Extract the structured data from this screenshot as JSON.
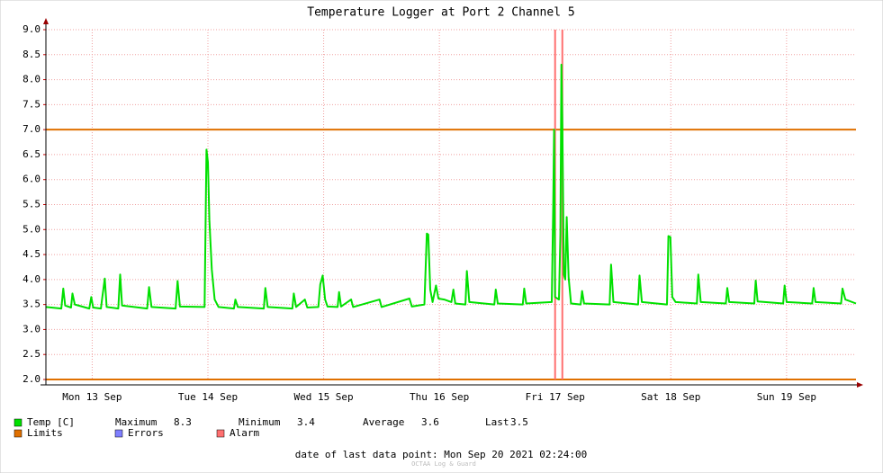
{
  "chart_data": {
    "type": "line",
    "title": "Temperature Logger at Port 2 Channel 5",
    "xlim": [
      2.4,
      170.4
    ],
    "xticks": [
      {
        "value": 12,
        "label": "Mon 13 Sep"
      },
      {
        "value": 36,
        "label": "Tue 14 Sep"
      },
      {
        "value": 60,
        "label": "Wed 15 Sep"
      },
      {
        "value": 84,
        "label": "Thu 16 Sep"
      },
      {
        "value": 108,
        "label": "Fri 17 Sep"
      },
      {
        "value": 132,
        "label": "Sat 18 Sep"
      },
      {
        "value": 156,
        "label": "Sun 19 Sep"
      }
    ],
    "ylim": [
      2,
      9
    ],
    "yticks": [
      {
        "value": 2,
        "label": "2.0"
      },
      2.5,
      {
        "value": 3,
        "label": "3.0"
      },
      3.5,
      {
        "value": 4,
        "label": "4.0"
      },
      4.5,
      {
        "value": 5,
        "label": "5.0"
      },
      5.5,
      {
        "value": 6,
        "label": "6.0"
      },
      6.5,
      {
        "value": 7,
        "label": "7.0"
      },
      7.5,
      {
        "value": 8,
        "label": "8.0"
      },
      8.5,
      {
        "value": 9,
        "label": "9.0"
      }
    ],
    "grid": true,
    "x": [
      2.4,
      5.6,
      6.0,
      6.4,
      7.6,
      7.9,
      8.4,
      11.4,
      11.8,
      12.2,
      13.8,
      14.1,
      14.6,
      15.0,
      17.4,
      17.8,
      18.2,
      23.4,
      23.8,
      24.3,
      29.3,
      29.7,
      30.2,
      35.3,
      35.7,
      36.0,
      36.3,
      36.8,
      37.4,
      38.2,
      41.4,
      41.7,
      42.2,
      47.6,
      47.9,
      48.4,
      53.5,
      53.8,
      54.3,
      56.1,
      56.6,
      58.9,
      59.3,
      59.8,
      60.3,
      60.8,
      62.9,
      63.2,
      63.6,
      65.7,
      66.1,
      71.6,
      72.0,
      77.8,
      78.3,
      80.9,
      81.4,
      81.7,
      82.1,
      82.6,
      83.3,
      83.8,
      85.0,
      86.5,
      86.9,
      87.3,
      89.4,
      89.7,
      90.2,
      95.4,
      95.7,
      96.1,
      101.3,
      101.6,
      102.0,
      107.3,
      107.6,
      107.8,
      108.0,
      108.8,
      109.1,
      109.3,
      109.5,
      109.8,
      110.1,
      110.4,
      110.8,
      111.3,
      113.3,
      113.6,
      114.0,
      119.3,
      119.6,
      120.1,
      125.2,
      125.5,
      126.0,
      131.2,
      131.5,
      131.9,
      132.3,
      133.0,
      137.4,
      137.7,
      138.2,
      143.4,
      143.7,
      144.1,
      149.3,
      149.6,
      150.0,
      155.3,
      155.6,
      156.0,
      161.3,
      161.6,
      162.0,
      167.3,
      167.6,
      168.2,
      170.4
    ],
    "series": [
      {
        "name": "Temp [C]",
        "color": "#00e000",
        "values": [
          3.45,
          3.42,
          3.82,
          3.48,
          3.44,
          3.72,
          3.5,
          3.42,
          3.65,
          3.44,
          3.42,
          3.65,
          4.02,
          3.45,
          3.42,
          4.1,
          3.48,
          3.42,
          3.85,
          3.45,
          3.42,
          3.97,
          3.46,
          3.45,
          6.6,
          6.35,
          5.2,
          4.2,
          3.6,
          3.45,
          3.42,
          3.6,
          3.45,
          3.42,
          3.83,
          3.45,
          3.42,
          3.72,
          3.45,
          3.6,
          3.44,
          3.45,
          3.9,
          4.08,
          3.6,
          3.46,
          3.45,
          3.75,
          3.46,
          3.6,
          3.45,
          3.6,
          3.45,
          3.62,
          3.46,
          3.5,
          4.92,
          4.9,
          3.8,
          3.55,
          3.88,
          3.62,
          3.6,
          3.55,
          3.8,
          3.52,
          3.5,
          4.17,
          3.55,
          3.5,
          3.8,
          3.52,
          3.5,
          3.82,
          3.52,
          3.55,
          5.45,
          7.0,
          3.65,
          3.6,
          4.9,
          8.3,
          7.1,
          4.1,
          4.0,
          5.25,
          4.05,
          3.52,
          3.5,
          3.77,
          3.52,
          3.5,
          4.3,
          3.55,
          3.5,
          4.08,
          3.55,
          3.5,
          4.87,
          4.85,
          3.65,
          3.55,
          3.52,
          4.1,
          3.55,
          3.52,
          3.83,
          3.55,
          3.52,
          3.98,
          3.56,
          3.52,
          3.88,
          3.55,
          3.52,
          3.83,
          3.55,
          3.52,
          3.82,
          3.6,
          3.52
        ]
      }
    ],
    "stats": [
      {
        "label": "Maximum",
        "value": "8.3"
      },
      {
        "label": "Minimum",
        "value": "3.4"
      },
      {
        "label": "Average",
        "value": "3.6"
      },
      {
        "label": "Last",
        "value": "3.5"
      }
    ],
    "limits": {
      "name": "Limits",
      "color": "#e07000",
      "values": [
        7.0,
        2.0
      ]
    },
    "errors": {
      "name": "Errors",
      "color": "#7f7fff"
    },
    "alarm": {
      "name": "Alarm",
      "color": "#ff7070",
      "x": [
        108.0,
        109.5
      ]
    },
    "footer": "date of last data point:  Mon Sep 20 2021 02:24:00",
    "watermark": "OCTAA Log & Guard"
  }
}
